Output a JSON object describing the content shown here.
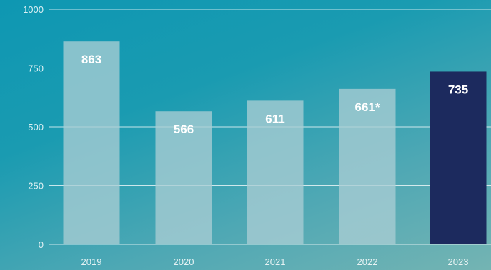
{
  "chart_data": {
    "type": "bar",
    "categories": [
      "2019",
      "2020",
      "2021",
      "2022",
      "2023"
    ],
    "values": [
      863,
      566,
      611,
      661,
      735
    ],
    "data_labels": [
      "863",
      "566",
      "611",
      "661*",
      "735"
    ],
    "ylim": [
      0,
      1000
    ],
    "yticks": [
      0,
      250,
      500,
      750,
      1000
    ],
    "ytick_labels": [
      "0",
      "250",
      "500",
      "750",
      "1000"
    ],
    "grid": true,
    "highlight_index": 4,
    "colors": {
      "bar": "#a9cdd4",
      "bar_highlight": "#1c2a5e",
      "grid": "#ffffff"
    }
  }
}
